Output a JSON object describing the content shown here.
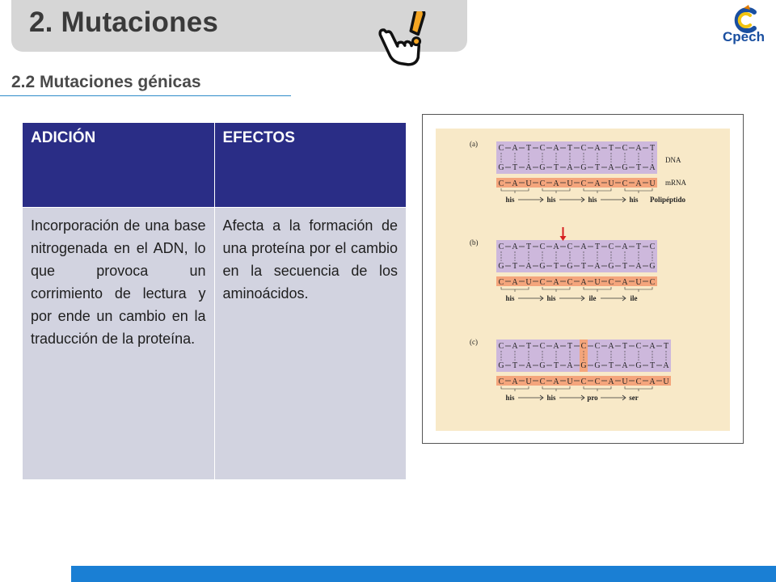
{
  "header": {
    "title": "2. Mutaciones",
    "logo_text": "Cpech",
    "colors": {
      "title_bar": "#d6d6d6",
      "logo": "#1a4fa0"
    }
  },
  "section": {
    "subtitle": "2.2 Mutaciones génicas"
  },
  "table": {
    "headers": [
      "ADICIÓN",
      "EFECTOS"
    ],
    "rows": [
      [
        "Incorporación de una base nitrogenada en el ADN, lo que provoca un corrimiento de lectura y por ende un cambio en la traducción de la proteína.",
        "Afecta a la formación de una proteína por el cambio en la secuencia de los aminoácidos."
      ]
    ],
    "colors": {
      "header_bg": "#2a2d86",
      "cell_bg": "#d2d3e0"
    }
  },
  "figure": {
    "panels": [
      {
        "label": "(a)",
        "dna_top": [
          "C",
          "A",
          "T",
          "C",
          "A",
          "T",
          "C",
          "A",
          "T",
          "C",
          "A",
          "T"
        ],
        "dna_bottom": [
          "G",
          "T",
          "A",
          "G",
          "T",
          "A",
          "G",
          "T",
          "A",
          "G",
          "T",
          "A"
        ],
        "mrna": [
          "C",
          "A",
          "U",
          "C",
          "A",
          "U",
          "C",
          "A",
          "U",
          "C",
          "A",
          "U"
        ],
        "aminoacids": [
          "his",
          "his",
          "his",
          "his"
        ],
        "dna_label": "DNA",
        "mrna_label": "mRNA",
        "protein_label": "Polipéptido",
        "highlight_index": -1
      },
      {
        "label": "(b)",
        "dna_top": [
          "C",
          "A",
          "T",
          "C",
          "A",
          "C",
          "A",
          "T",
          "C",
          "A",
          "T",
          "C"
        ],
        "dna_bottom": [
          "G",
          "T",
          "A",
          "G",
          "T",
          "G",
          "T",
          "A",
          "G",
          "T",
          "A",
          "G"
        ],
        "mrna": [
          "C",
          "A",
          "U",
          "C",
          "A",
          "C",
          "A",
          "U",
          "C",
          "A",
          "U",
          "C"
        ],
        "aminoacids": [
          "his",
          "his",
          "ile",
          "ile"
        ],
        "dna_label": "",
        "mrna_label": "",
        "protein_label": "",
        "highlight_index": -1,
        "arrow_index": 4.5
      },
      {
        "label": "(c)",
        "dna_top": [
          "C",
          "A",
          "T",
          "C",
          "A",
          "T",
          "C",
          "C",
          "A",
          "T",
          "C",
          "A",
          "T"
        ],
        "dna_bottom": [
          "G",
          "T",
          "A",
          "G",
          "T",
          "A",
          "G",
          "G",
          "T",
          "A",
          "G",
          "T",
          "A"
        ],
        "mrna": [
          "C",
          "A",
          "U",
          "C",
          "A",
          "U",
          "C",
          "C",
          "A",
          "U",
          "C",
          "A",
          "U"
        ],
        "aminoacids": [
          "his",
          "his",
          "pro",
          "ser"
        ],
        "dna_label": "",
        "mrna_label": "",
        "protein_label": "",
        "highlight_index": 6
      }
    ],
    "colors": {
      "background": "#f8e9c8",
      "dna_box": "#cdb8dc",
      "mrna_box": "#f4a57c",
      "arrow": "#d62020"
    }
  },
  "footer": {
    "colors": {
      "bar": "#1a7fd4"
    }
  }
}
